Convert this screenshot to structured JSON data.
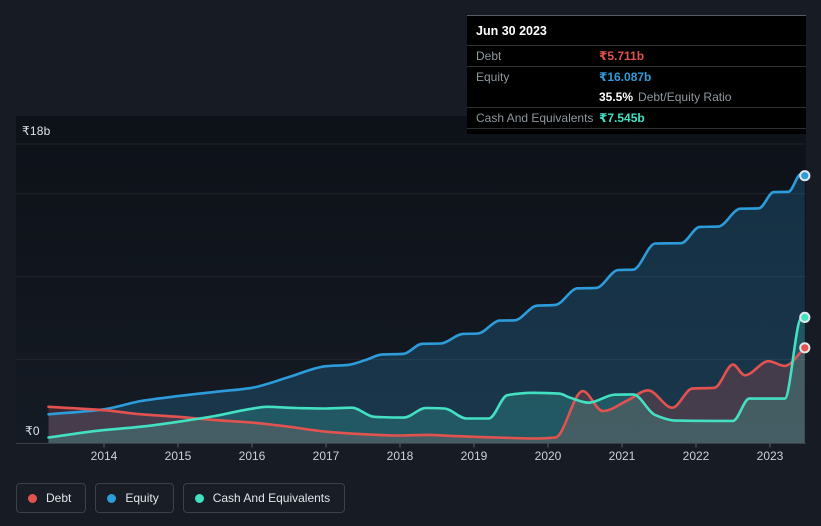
{
  "tooltip": {
    "date": "Jun 30 2023",
    "debt_label": "Debt",
    "debt_value": "₹5.711b",
    "equity_label": "Equity",
    "equity_value": "₹16.087b",
    "ratio_pct": "35.5%",
    "ratio_label": "Debt/Equity Ratio",
    "cash_label": "Cash And Equivalents",
    "cash_value": "₹7.545b"
  },
  "axis": {
    "y_top_label": "₹18b",
    "y_zero_label": "₹0",
    "years": [
      "2014",
      "2015",
      "2016",
      "2017",
      "2018",
      "2019",
      "2020",
      "2021",
      "2022",
      "2023"
    ]
  },
  "legend": [
    {
      "label": "Debt",
      "key": "debt"
    },
    {
      "label": "Equity",
      "key": "equity"
    },
    {
      "label": "Cash And Equivalents",
      "key": "cash"
    }
  ],
  "colors": {
    "debt": "#e25350",
    "equity": "#2d9cdb",
    "cash": "#43e0c2",
    "dot_ring": "#dfe6ec",
    "grid": "rgba(255,255,255,0.07)",
    "zero_line": "rgba(255,255,255,0.16)",
    "tick": "rgba(255,255,255,0.30)",
    "plot_bg_top": "#0d1118",
    "plot_bg_bottom": "#151b24",
    "page_bg": "#161b24",
    "tooltip_bg": "#000000"
  },
  "chart_data": {
    "type": "area",
    "title": "Debt and equity history (tooltip shows Jun 30 2023)",
    "x_unit": "year",
    "x_range": [
      2013.25,
      2023.47
    ],
    "ylim": [
      0,
      18
    ],
    "y_currency": "₹b",
    "y_gridlines": [
      0,
      5,
      10,
      15,
      18
    ],
    "legend_position": "bottom-left",
    "series": [
      {
        "name": "Equity",
        "key": "equity",
        "final_value_b": 16.087,
        "points": [
          [
            2013.25,
            1.7
          ],
          [
            2014,
            2.0
          ],
          [
            2014.5,
            2.5
          ],
          [
            2015,
            2.8
          ],
          [
            2015.5,
            3.05
          ],
          [
            2016,
            3.3
          ],
          [
            2016.5,
            3.95
          ],
          [
            2017,
            4.6
          ],
          [
            2017.3,
            4.68
          ],
          [
            2017.55,
            5.0
          ],
          [
            2017.75,
            5.3
          ],
          [
            2018.05,
            5.35
          ],
          [
            2018.3,
            5.95
          ],
          [
            2018.55,
            5.97
          ],
          [
            2018.85,
            6.55
          ],
          [
            2019.05,
            6.57
          ],
          [
            2019.35,
            7.35
          ],
          [
            2019.55,
            7.37
          ],
          [
            2019.85,
            8.25
          ],
          [
            2020.1,
            8.3
          ],
          [
            2020.4,
            9.3
          ],
          [
            2020.65,
            9.32
          ],
          [
            2020.95,
            10.4
          ],
          [
            2021.15,
            10.42
          ],
          [
            2021.45,
            12.0
          ],
          [
            2021.8,
            12.02
          ],
          [
            2022.05,
            13.0
          ],
          [
            2022.3,
            13.02
          ],
          [
            2022.6,
            14.1
          ],
          [
            2022.85,
            14.12
          ],
          [
            2023.05,
            15.1
          ],
          [
            2023.25,
            15.12
          ],
          [
            2023.42,
            16.2
          ],
          [
            2023.47,
            16.087
          ]
        ]
      },
      {
        "name": "Debt",
        "key": "debt",
        "final_value_b": 5.711,
        "points": [
          [
            2013.25,
            2.15
          ],
          [
            2014,
            1.95
          ],
          [
            2014.5,
            1.7
          ],
          [
            2015,
            1.55
          ],
          [
            2015.5,
            1.35
          ],
          [
            2016,
            1.2
          ],
          [
            2016.5,
            0.95
          ],
          [
            2017,
            0.65
          ],
          [
            2017.5,
            0.5
          ],
          [
            2018,
            0.42
          ],
          [
            2018.35,
            0.46
          ],
          [
            2018.8,
            0.38
          ],
          [
            2019.3,
            0.3
          ],
          [
            2019.85,
            0.24
          ],
          [
            2020.1,
            0.3
          ],
          [
            2020.47,
            3.1
          ],
          [
            2020.74,
            1.9
          ],
          [
            2021.1,
            2.6
          ],
          [
            2021.35,
            3.15
          ],
          [
            2021.68,
            2.1
          ],
          [
            2021.95,
            3.25
          ],
          [
            2022.25,
            3.3
          ],
          [
            2022.5,
            4.7
          ],
          [
            2022.66,
            4.05
          ],
          [
            2022.98,
            4.9
          ],
          [
            2023.2,
            4.62
          ],
          [
            2023.47,
            5.711
          ]
        ]
      },
      {
        "name": "Cash And Equivalents",
        "key": "cash",
        "final_value_b": 7.545,
        "points": [
          [
            2013.25,
            0.3
          ],
          [
            2014,
            0.75
          ],
          [
            2014.5,
            0.95
          ],
          [
            2015,
            1.25
          ],
          [
            2015.5,
            1.6
          ],
          [
            2015.95,
            2.0
          ],
          [
            2016.2,
            2.15
          ],
          [
            2016.6,
            2.08
          ],
          [
            2017,
            2.05
          ],
          [
            2017.35,
            2.1
          ],
          [
            2017.65,
            1.55
          ],
          [
            2018.05,
            1.5
          ],
          [
            2018.35,
            2.08
          ],
          [
            2018.6,
            2.05
          ],
          [
            2018.9,
            1.45
          ],
          [
            2019.2,
            1.45
          ],
          [
            2019.45,
            2.85
          ],
          [
            2019.8,
            3.0
          ],
          [
            2020.15,
            2.95
          ],
          [
            2020.3,
            2.7
          ],
          [
            2020.55,
            2.4
          ],
          [
            2020.9,
            2.88
          ],
          [
            2021.15,
            2.9
          ],
          [
            2021.45,
            1.65
          ],
          [
            2021.72,
            1.32
          ],
          [
            2022.2,
            1.3
          ],
          [
            2022.5,
            1.3
          ],
          [
            2022.72,
            2.65
          ],
          [
            2023.2,
            2.65
          ],
          [
            2023.42,
            7.5
          ],
          [
            2023.47,
            7.545
          ]
        ]
      }
    ]
  }
}
